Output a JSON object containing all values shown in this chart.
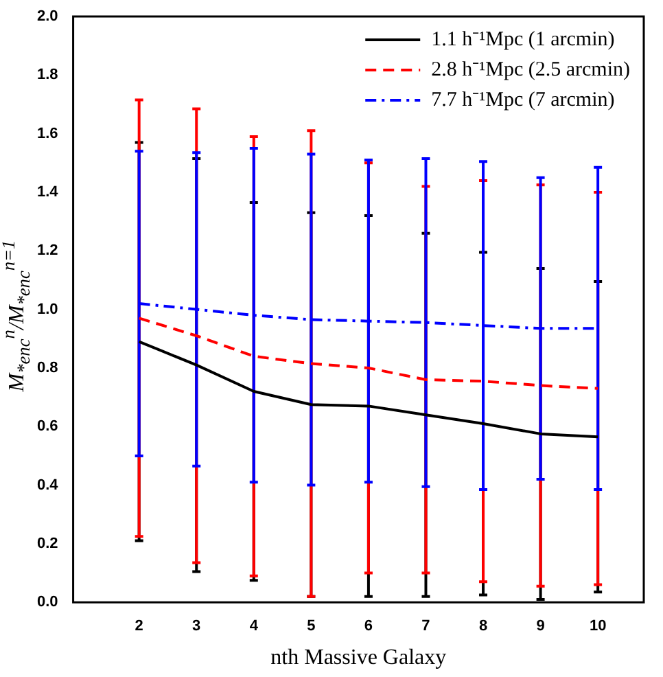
{
  "chart_data": {
    "type": "line",
    "xlabel": "nth Massive Galaxy",
    "ylabel": "M$_{*enc}$$^{n}$/M$_{*enc}$$^{n=1}$",
    "x": [
      2,
      3,
      4,
      5,
      6,
      7,
      8,
      9,
      10
    ],
    "xlim": [
      0.85,
      10.8
    ],
    "xticks": [
      2,
      3,
      4,
      5,
      6,
      7,
      8,
      9,
      10
    ],
    "ylim": [
      0,
      2
    ],
    "yticks": [
      {
        "value": 0,
        "label": "0.0"
      },
      0.2,
      0.4,
      0.6,
      0.8,
      {
        "value": 1,
        "label": "1.0"
      },
      1.2,
      1.4,
      1.6,
      1.8,
      {
        "value": 2,
        "label": "2.0"
      }
    ],
    "grid": false,
    "legend": "top right",
    "marker": "none",
    "series": [
      {
        "name": "1.1 h⁻¹Mpc (1 arcmin)",
        "color": "#000000",
        "line_style": "solid",
        "values": [
          0.89,
          0.81,
          0.72,
          0.675,
          0.67,
          0.64,
          0.61,
          0.575,
          0.565
        ],
        "errors": [
          0.68,
          0.705,
          0.645,
          0.655,
          0.65,
          0.62,
          0.585,
          0.565,
          0.53
        ]
      },
      {
        "name": "2.8 h⁻¹Mpc (2.5 arcmin)",
        "color": "#ff0000",
        "line_style": "dashed",
        "values": [
          0.97,
          0.91,
          0.84,
          0.815,
          0.8,
          0.76,
          0.755,
          0.74,
          0.73
        ],
        "errors": [
          0.745,
          0.775,
          0.75,
          0.795,
          0.7,
          0.66,
          0.685,
          0.685,
          0.67
        ]
      },
      {
        "name": "7.7 h⁻¹Mpc (7 arcmin)",
        "color": "#0000ff",
        "line_style": "dashdot",
        "values": [
          1.02,
          1.0,
          0.98,
          0.965,
          0.96,
          0.955,
          0.945,
          0.935,
          0.935
        ],
        "errors": [
          0.52,
          0.535,
          0.57,
          0.565,
          0.55,
          0.56,
          0.56,
          0.515,
          0.55
        ]
      }
    ]
  }
}
